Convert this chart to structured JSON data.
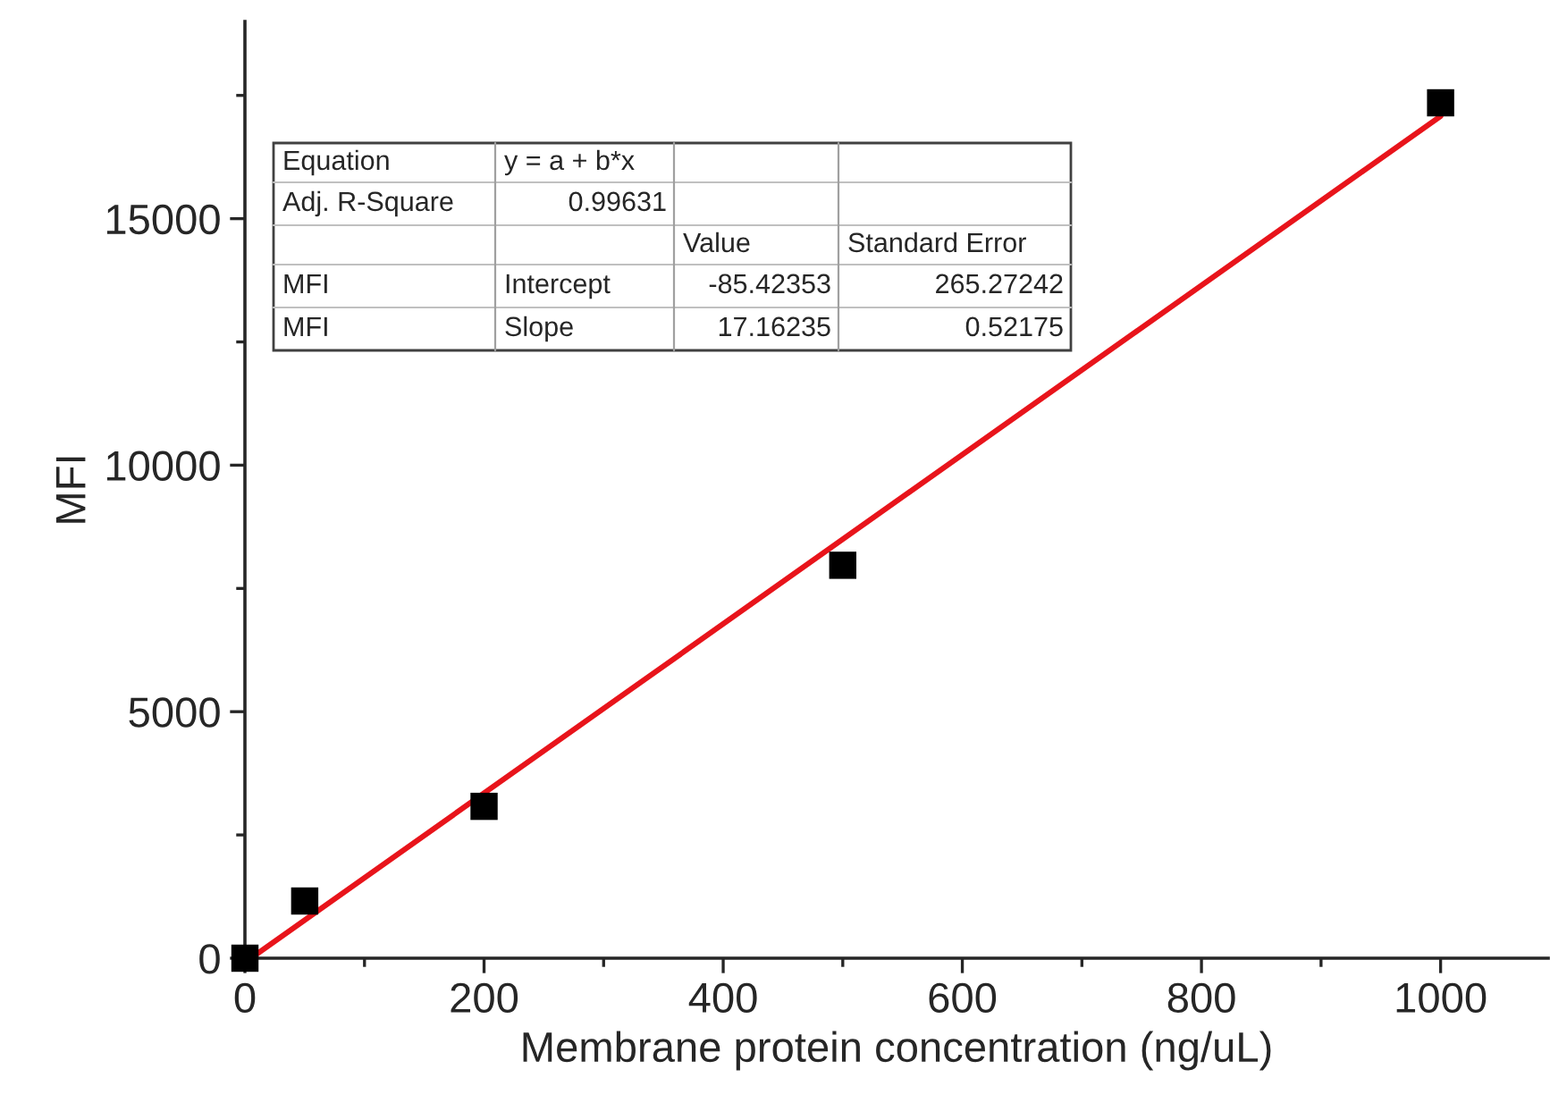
{
  "chart_data": {
    "type": "scatter",
    "xlabel": "Membrane protein concentration (ng/uL)",
    "ylabel": "MFI",
    "x": [
      0,
      50,
      200,
      500,
      1000
    ],
    "series": [
      {
        "color": "#000000",
        "marker": "square",
        "values": [
          0,
          1160,
          3080,
          7970,
          17350
        ]
      },
      {
        "type": "line",
        "color": "#e8141b",
        "line_style": "solid",
        "marker": "none",
        "x": [
          5,
          1000
        ],
        "values": [
          0,
          17080
        ]
      }
    ],
    "xlim": [
      0,
      1090
    ],
    "xticks": [
      0,
      200,
      400,
      600,
      800,
      1000
    ],
    "ylim": [
      0,
      19000
    ],
    "yticks": [
      0,
      5000,
      10000,
      15000
    ],
    "grid": false,
    "legend": false,
    "annotations": [
      "Equation",
      "y = a + b*x",
      "Adj. R-Square",
      "0.99631",
      "Value",
      "Standard Error",
      "MFI",
      "Intercept",
      "-85.42353",
      "265.27242",
      "MFI",
      "Slope",
      "17.16235",
      "0.52175"
    ]
  }
}
